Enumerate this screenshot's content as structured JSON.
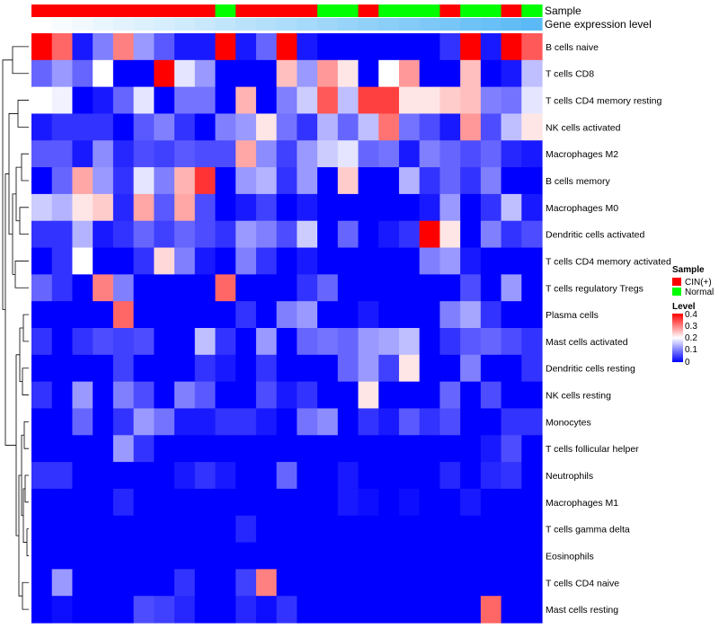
{
  "chart_data": {
    "type": "heatmap",
    "annotation_labels": [
      "Sample",
      "Gene expression level"
    ],
    "sample_groups": [
      "CIN(+)",
      "CIN(+)",
      "CIN(+)",
      "CIN(+)",
      "CIN(+)",
      "CIN(+)",
      "CIN(+)",
      "CIN(+)",
      "CIN(+)",
      "Normal",
      "CIN(+)",
      "CIN(+)",
      "CIN(+)",
      "CIN(+)",
      "Normal",
      "Normal",
      "CIN(+)",
      "Normal",
      "Normal",
      "Normal",
      "CIN(+)",
      "Normal",
      "Normal",
      "CIN(+)",
      "Normal"
    ],
    "expression_level": [
      0.0,
      0.04,
      0.08,
      0.13,
      0.17,
      0.21,
      0.25,
      0.29,
      0.33,
      0.38,
      0.42,
      0.46,
      0.5,
      0.54,
      0.58,
      0.63,
      0.67,
      0.71,
      0.75,
      0.79,
      0.83,
      0.88,
      0.92,
      0.96,
      1.0
    ],
    "rows": [
      "B cells naive",
      "T cells CD8",
      "T cells CD4 memory resting",
      "NK cells activated",
      "Macrophages M2",
      "B cells memory",
      "Macrophages M0",
      "Dendritic cells activated",
      "T cells CD4 memory activated",
      "T cells regulatory  Tregs",
      "Plasma cells",
      "Mast cells activated",
      "Dendritic cells resting",
      "NK cells resting",
      "Monocytes",
      "T cells follicular helper",
      "Neutrophils",
      "Macrophages M1",
      "T cells gamma delta",
      "Eosinophils",
      "T cells CD4 naive",
      "Mast cells resting"
    ],
    "values": [
      [
        0.4,
        0.32,
        0.02,
        0.1,
        0.3,
        0.12,
        0.07,
        0.02,
        0.02,
        0.4,
        0.02,
        0.08,
        0.4,
        0.02,
        0.0,
        0.0,
        0.0,
        0.0,
        0.0,
        0.0,
        0.04,
        0.4,
        0.02,
        0.4,
        0.33
      ],
      [
        0.08,
        0.12,
        0.08,
        0.2,
        0.0,
        0.0,
        0.4,
        0.18,
        0.12,
        0.0,
        0.0,
        0.0,
        0.25,
        0.12,
        0.28,
        0.22,
        0.0,
        0.2,
        0.28,
        0.0,
        0.0,
        0.25,
        0.0,
        0.02,
        0.15
      ],
      [
        0.2,
        0.19,
        0.0,
        0.02,
        0.08,
        0.18,
        0.0,
        0.09,
        0.09,
        0.0,
        0.26,
        0.0,
        0.1,
        0.16,
        0.33,
        0.15,
        0.35,
        0.35,
        0.22,
        0.22,
        0.24,
        0.25,
        0.1,
        0.09,
        0.18
      ],
      [
        0.02,
        0.04,
        0.04,
        0.04,
        0.0,
        0.07,
        0.1,
        0.04,
        0.0,
        0.1,
        0.12,
        0.22,
        0.09,
        0.04,
        0.14,
        0.08,
        0.15,
        0.31,
        0.09,
        0.06,
        0.02,
        0.28,
        0.06,
        0.15,
        0.22
      ],
      [
        0.07,
        0.07,
        0.02,
        0.11,
        0.03,
        0.06,
        0.05,
        0.07,
        0.06,
        0.06,
        0.27,
        0.11,
        0.05,
        0.12,
        0.16,
        0.18,
        0.08,
        0.09,
        0.02,
        0.1,
        0.08,
        0.06,
        0.08,
        0.03,
        0.02
      ],
      [
        0.0,
        0.08,
        0.27,
        0.12,
        0.04,
        0.18,
        0.1,
        0.26,
        0.36,
        0.0,
        0.12,
        0.14,
        0.04,
        0.12,
        0.0,
        0.24,
        0.0,
        0.0,
        0.14,
        0.04,
        0.08,
        0.04,
        0.1,
        0.0,
        0.0
      ],
      [
        0.16,
        0.14,
        0.22,
        0.24,
        0.03,
        0.27,
        0.07,
        0.27,
        0.06,
        0.0,
        0.02,
        0.05,
        0.0,
        0.02,
        0.0,
        0.0,
        0.0,
        0.0,
        0.0,
        0.02,
        0.12,
        0.0,
        0.04,
        0.15,
        0.02
      ],
      [
        0.04,
        0.04,
        0.14,
        0.02,
        0.04,
        0.08,
        0.05,
        0.08,
        0.06,
        0.04,
        0.12,
        0.1,
        0.06,
        0.16,
        0.0,
        0.08,
        0.0,
        0.02,
        0.04,
        0.4,
        0.22,
        0.0,
        0.1,
        0.04,
        0.06
      ],
      [
        0.0,
        0.04,
        0.2,
        0.0,
        0.0,
        0.04,
        0.23,
        0.1,
        0.02,
        0.0,
        0.1,
        0.04,
        0.0,
        0.02,
        0.0,
        0.0,
        0.0,
        0.0,
        0.0,
        0.1,
        0.12,
        0.02,
        0.0,
        0.0,
        0.0
      ],
      [
        0.08,
        0.04,
        0.0,
        0.3,
        0.1,
        0.0,
        0.0,
        0.0,
        0.0,
        0.32,
        0.0,
        0.0,
        0.0,
        0.04,
        0.08,
        0.0,
        0.0,
        0.0,
        0.0,
        0.0,
        0.0,
        0.06,
        0.0,
        0.12,
        0.0
      ],
      [
        0.0,
        0.0,
        0.0,
        0.0,
        0.32,
        0.0,
        0.0,
        0.0,
        0.0,
        0.0,
        0.04,
        0.0,
        0.1,
        0.12,
        0.0,
        0.0,
        0.02,
        0.0,
        0.0,
        0.0,
        0.1,
        0.13,
        0.04,
        0.0,
        0.0
      ],
      [
        0.04,
        0.0,
        0.04,
        0.06,
        0.05,
        0.06,
        0.0,
        0.0,
        0.15,
        0.04,
        0.0,
        0.12,
        0.0,
        0.08,
        0.09,
        0.08,
        0.12,
        0.13,
        0.15,
        0.0,
        0.04,
        0.07,
        0.08,
        0.06,
        0.04
      ],
      [
        0.0,
        0.0,
        0.0,
        0.0,
        0.05,
        0.0,
        0.0,
        0.0,
        0.04,
        0.02,
        0.0,
        0.04,
        0.0,
        0.0,
        0.0,
        0.08,
        0.12,
        0.05,
        0.22,
        0.0,
        0.0,
        0.1,
        0.0,
        0.0,
        0.04
      ],
      [
        0.04,
        0.0,
        0.12,
        0.0,
        0.1,
        0.06,
        0.0,
        0.1,
        0.07,
        0.0,
        0.0,
        0.06,
        0.02,
        0.04,
        0.0,
        0.0,
        0.22,
        0.0,
        0.0,
        0.0,
        0.08,
        0.0,
        0.06,
        0.0,
        0.0
      ],
      [
        0.0,
        0.0,
        0.08,
        0.0,
        0.04,
        0.12,
        0.09,
        0.02,
        0.02,
        0.04,
        0.04,
        0.02,
        0.0,
        0.09,
        0.11,
        0.0,
        0.04,
        0.02,
        0.07,
        0.04,
        0.06,
        0.0,
        0.0,
        0.04,
        0.04
      ],
      [
        0.0,
        0.0,
        0.0,
        0.0,
        0.12,
        0.04,
        0.0,
        0.0,
        0.0,
        0.0,
        0.0,
        0.0,
        0.0,
        0.0,
        0.0,
        0.0,
        0.0,
        0.0,
        0.0,
        0.0,
        0.0,
        0.0,
        0.02,
        0.06,
        0.0
      ],
      [
        0.04,
        0.04,
        0.0,
        0.0,
        0.0,
        0.0,
        0.0,
        0.02,
        0.04,
        0.02,
        0.0,
        0.0,
        0.08,
        0.0,
        0.0,
        0.02,
        0.0,
        0.0,
        0.0,
        0.0,
        0.03,
        0.0,
        0.03,
        0.04,
        0.0
      ],
      [
        0.0,
        0.0,
        0.0,
        0.0,
        0.03,
        0.0,
        0.0,
        0.0,
        0.0,
        0.0,
        0.0,
        0.0,
        0.0,
        0.0,
        0.0,
        0.02,
        0.01,
        0.0,
        0.01,
        0.0,
        0.0,
        0.02,
        0.0,
        0.0,
        0.0
      ],
      [
        0.0,
        0.0,
        0.0,
        0.0,
        0.0,
        0.0,
        0.0,
        0.0,
        0.0,
        0.0,
        0.03,
        0.0,
        0.0,
        0.0,
        0.0,
        0.0,
        0.0,
        0.0,
        0.0,
        0.0,
        0.0,
        0.0,
        0.0,
        0.0,
        0.0
      ],
      [
        0.0,
        0.0,
        0.0,
        0.0,
        0.0,
        0.0,
        0.0,
        0.0,
        0.0,
        0.0,
        0.0,
        0.0,
        0.0,
        0.0,
        0.0,
        0.0,
        0.0,
        0.0,
        0.0,
        0.0,
        0.0,
        0.0,
        0.0,
        0.0,
        0.0
      ],
      [
        0.0,
        0.12,
        0.0,
        0.0,
        0.0,
        0.0,
        0.0,
        0.04,
        0.0,
        0.0,
        0.05,
        0.3,
        0.0,
        0.0,
        0.0,
        0.0,
        0.0,
        0.0,
        0.0,
        0.0,
        0.0,
        0.0,
        0.0,
        0.0,
        0.0
      ],
      [
        0.0,
        0.01,
        0.0,
        0.0,
        0.0,
        0.06,
        0.05,
        0.03,
        0.0,
        0.0,
        0.03,
        0.01,
        0.04,
        0.0,
        0.0,
        0.0,
        0.0,
        0.0,
        0.0,
        0.0,
        0.0,
        0.0,
        0.32,
        0.0,
        0.0
      ]
    ],
    "color_range": [
      0,
      0.4
    ],
    "legend": {
      "sample_title": "Sample",
      "sample_entries": [
        "CIN(+)",
        "Normal"
      ],
      "level_title": "Level",
      "level_ticks": [
        "0.4",
        "0.3",
        "0.2",
        "0.1",
        "0"
      ],
      "placement": "right"
    }
  },
  "colors": {
    "cin": "#ff0000",
    "normal": "#00ff00",
    "low": "#0000ff",
    "mid": "#ffffff",
    "high": "#ff0000",
    "expr_low": "#ffffff",
    "expr_high": "#5bbaf5",
    "dendro": "#000000"
  }
}
